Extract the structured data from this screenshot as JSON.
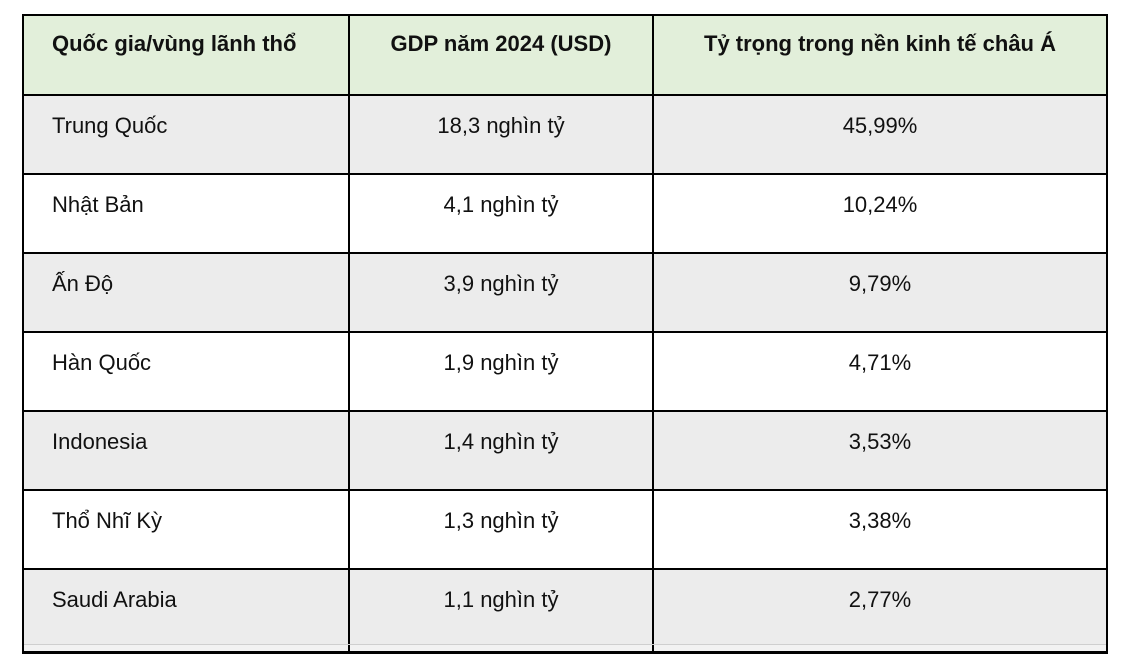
{
  "table": {
    "colors": {
      "header_bg": "#e2efda",
      "zebra_row_bg": "#ececec",
      "plain_row_bg": "#ffffff",
      "partial_row_bg": "#f2f2f2",
      "border": "#000000",
      "text": "#111111"
    },
    "columns": [
      "Quốc gia/vùng lãnh thổ",
      "GDP năm 2024 (USD)",
      "Tỷ trọng trong nền kinh tế châu Á"
    ],
    "rows": [
      {
        "country": "Trung Quốc",
        "gdp": "18,3 nghìn tỷ",
        "share": "45,99%"
      },
      {
        "country": "Nhật Bản",
        "gdp": "4,1 nghìn tỷ",
        "share": "10,24%"
      },
      {
        "country": "Ấn Độ",
        "gdp": "3,9 nghìn tỷ",
        "share": "9,79%"
      },
      {
        "country": "Hàn Quốc",
        "gdp": "1,9 nghìn tỷ",
        "share": "4,71%"
      },
      {
        "country": "Indonesia",
        "gdp": "1,4 nghìn tỷ",
        "share": "3,53%"
      },
      {
        "country": "Thổ Nhĩ Kỳ",
        "gdp": "1,3 nghìn tỷ",
        "share": "3,38%"
      },
      {
        "country": "Saudi Arabia",
        "gdp": "1,1 nghìn tỷ",
        "share": "2,77%"
      }
    ]
  }
}
